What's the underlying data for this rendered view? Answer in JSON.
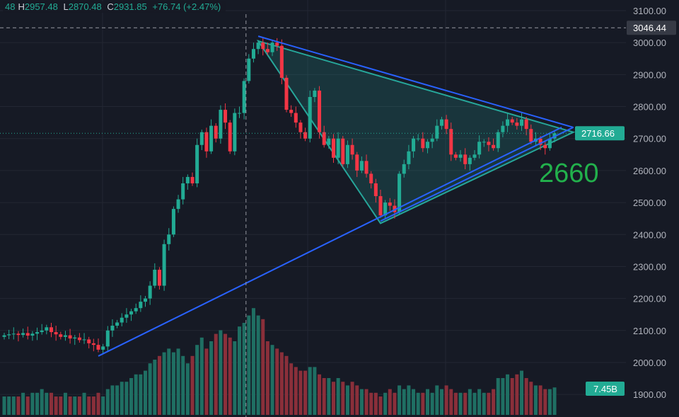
{
  "header": {
    "open": "48",
    "high_label": "H",
    "high": "2957.48",
    "low_label": "L",
    "low": "2870.48",
    "close_label": "C",
    "close": "2931.85",
    "change": "+76.74 (+2.47%)"
  },
  "annotation": "2660",
  "colors": {
    "up": "#22ab94",
    "down": "#f23645",
    "grid": "#232733",
    "text": "#b2b5be",
    "blue": "#2962ff",
    "triangle": "#26a69a"
  },
  "chart_data": {
    "type": "candlestick",
    "yaxis": {
      "ticks": [
        3100,
        3000,
        2900,
        2800,
        2700,
        2600,
        2500,
        2400,
        2300,
        2200,
        2100,
        2000,
        1900
      ],
      "labels": [
        "3100.00",
        "3000.00",
        "2900.00",
        "2800.00",
        "2700.00",
        "2600.00",
        "2500.00",
        "2400.00",
        "2300.00",
        "2200.00",
        "2100.00",
        "2000.00",
        "1900.00"
      ],
      "ylim": [
        1870,
        3120
      ]
    },
    "crosshair": {
      "price": 3046.44,
      "label": "3046.44",
      "index": 51.4
    },
    "last_price": {
      "value": 2716.66,
      "label": "2716.66"
    },
    "last_volume": {
      "label": "7.45B"
    },
    "closes": [
      2085,
      2088,
      2090,
      2086,
      2092,
      2084,
      2090,
      2095,
      2100,
      2110,
      2095,
      2088,
      2080,
      2085,
      2075,
      2078,
      2070,
      2072,
      2060,
      2055,
      2040,
      2050,
      2100,
      2115,
      2125,
      2140,
      2150,
      2160,
      2170,
      2190,
      2200,
      2240,
      2290,
      2240,
      2370,
      2400,
      2480,
      2510,
      2560,
      2580,
      2560,
      2680,
      2720,
      2660,
      2740,
      2700,
      2790,
      2750,
      2660,
      2780,
      2780,
      2880,
      2950,
      2980,
      3000,
      2980,
      2970,
      3000,
      2990,
      2890,
      2790,
      2780,
      2750,
      2720,
      2700,
      2830,
      2850,
      2720,
      2680,
      2700,
      2640,
      2700,
      2620,
      2680,
      2650,
      2600,
      2630,
      2590,
      2560,
      2520,
      2460,
      2500,
      2490,
      2470,
      2590,
      2620,
      2660,
      2700,
      2700,
      2670,
      2690,
      2700,
      2740,
      2760,
      2730,
      2650,
      2640,
      2650,
      2620,
      2640,
      2650,
      2690,
      2690,
      2680,
      2670,
      2720,
      2740,
      2760,
      2750,
      2740,
      2760,
      2730,
      2690,
      2700,
      2680,
      2670,
      2700,
      2716.66
    ],
    "volumes_b": [
      5,
      5,
      5,
      5,
      6,
      5,
      6,
      6,
      7,
      6,
      6,
      5,
      5,
      6,
      5,
      5,
      5,
      6,
      5,
      5,
      6,
      5,
      7,
      8,
      8,
      9,
      9,
      10,
      11,
      11,
      12,
      14,
      15,
      16,
      17,
      18,
      17,
      18,
      16,
      14,
      16,
      19,
      21,
      18,
      20,
      22,
      23,
      22,
      21,
      20,
      24,
      25,
      27,
      29,
      27,
      26,
      20,
      19,
      18,
      17,
      16,
      14,
      13,
      12,
      12,
      13,
      13,
      11,
      10,
      10,
      9,
      10,
      9,
      8,
      9,
      8,
      7,
      7,
      6,
      6,
      5,
      6,
      7,
      6,
      8,
      7,
      8,
      7,
      6,
      6,
      7,
      6,
      8,
      7,
      8,
      7,
      6,
      6,
      6,
      7,
      6,
      7,
      6,
      6,
      7,
      10,
      10,
      11,
      10,
      11,
      12,
      10,
      9,
      8,
      8,
      7,
      7,
      7.45
    ],
    "trendlines": [
      {
        "name": "support",
        "color": "blue",
        "from": [
          20,
          2020
        ],
        "to": [
          118.5,
          2735
        ]
      },
      {
        "name": "triangle-upper-blue",
        "color": "blue",
        "from": [
          54,
          3020
        ],
        "to": [
          121,
          2735
        ]
      },
      {
        "name": "triangle-lower-blue",
        "color": "blue",
        "from": [
          80,
          2442
        ],
        "to": [
          121,
          2735
        ]
      }
    ],
    "triangle": [
      [
        54,
        3005
      ],
      [
        80,
        2435
      ],
      [
        121,
        2720
      ]
    ]
  }
}
